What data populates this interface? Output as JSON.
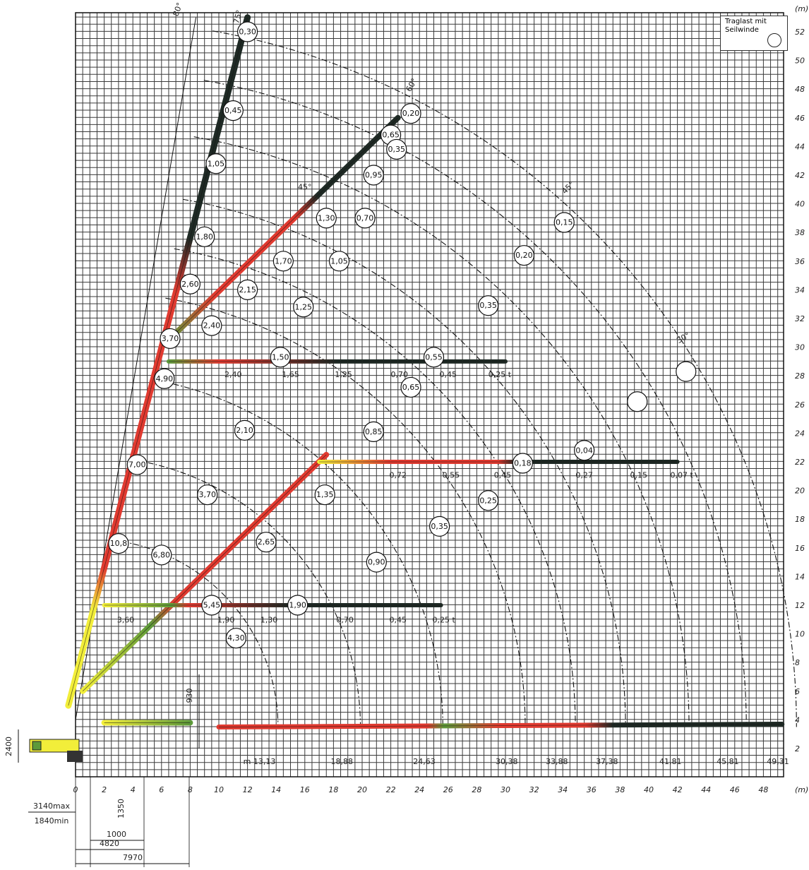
{
  "legend": {
    "line1": "Traglast mit",
    "line2": "Seilwinde"
  },
  "units": {
    "x": "(m)",
    "y": "(m)"
  },
  "x_ticks": [
    "0",
    "2",
    "4",
    "6",
    "8",
    "10",
    "12",
    "14",
    "16",
    "18",
    "20",
    "22",
    "24",
    "26",
    "28",
    "30",
    "32",
    "34",
    "36",
    "38",
    "40",
    "42",
    "44",
    "46",
    "48"
  ],
  "y_ticks": [
    "2",
    "4",
    "6",
    "8",
    "10",
    "12",
    "14",
    "16",
    "18",
    "20",
    "22",
    "24",
    "26",
    "28",
    "30",
    "32",
    "34",
    "36",
    "38",
    "40",
    "42",
    "44",
    "46",
    "48",
    "50",
    "52"
  ],
  "radii_labels": [
    "m 13,13",
    "18,88",
    "24,63",
    "30,38",
    "33,88",
    "37,38",
    "41,81",
    "45,81",
    "49,31"
  ],
  "angles": [
    "80°",
    "75°",
    "60°",
    "45°",
    "45°",
    "30°"
  ],
  "boom_75_loads": [
    "0,30",
    "0,45",
    "1,05",
    "1,80",
    "2,60",
    "3,70",
    "4,90",
    "7,00",
    "10,8"
  ],
  "boom_60_loads": [
    "0,20",
    "0,65",
    "0,95",
    "1,30",
    "1,70",
    "2,15",
    "2,40"
  ],
  "boom_45_loads": [
    "1,35",
    "2,65",
    "5,45"
  ],
  "arc_loads": [
    "0,35",
    "0,70",
    "1,05",
    "1,25",
    "1,50",
    "0,55",
    "0,35",
    "0,20",
    "0,15",
    "0,65",
    "0,85",
    "2,10",
    "3,70",
    "6,80",
    "0,04",
    "0,18",
    "0,25",
    "0,35",
    "0,90",
    "1,90",
    "4,30"
  ],
  "horiz_29_labels": [
    "2,40",
    "1,65",
    "1,25",
    "0,70",
    "0,45",
    "0,25 t"
  ],
  "horiz_22_labels": [
    "0,72",
    "0,55",
    "0,45",
    "0,27",
    "0,15",
    "0,07 t"
  ],
  "horiz_12_labels": [
    "3,60",
    "1,90",
    "1,30",
    "0,70",
    "0,45",
    "0,25 t"
  ],
  "dims": {
    "h2400": "2400",
    "h930": "930",
    "d1350": "1350",
    "d3140": "3140max",
    "d1840": "1840min",
    "d1000": "1000",
    "d4820": "4820",
    "d7970": "7970"
  },
  "colors": {
    "grid": "#3a3a3a",
    "red": "#e03a30",
    "yellow": "#f2ee3a",
    "green": "#5d9a3a",
    "dark": "#1f2a25"
  }
}
